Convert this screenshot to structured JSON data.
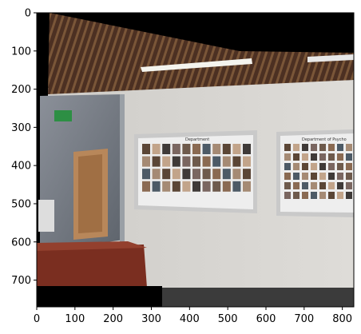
{
  "plot": {
    "xticks": [
      "0",
      "100",
      "200",
      "300",
      "400",
      "500",
      "600",
      "700",
      "800"
    ],
    "yticks": [
      "0",
      "100",
      "200",
      "300",
      "400",
      "500",
      "600",
      "700"
    ],
    "xlim": [
      0,
      830
    ],
    "ylim": [
      770,
      0
    ]
  },
  "scene": {
    "frame_left_label": "Department",
    "frame_right_label": "Department of Psycho",
    "colors": {
      "ceiling": "#5a3a2a",
      "wall": "#d9d7d3",
      "glass": "#7a8088",
      "desk": "#7a2e20",
      "exit_sign": "#2d8f44",
      "frame": "#c9c9c9"
    }
  }
}
